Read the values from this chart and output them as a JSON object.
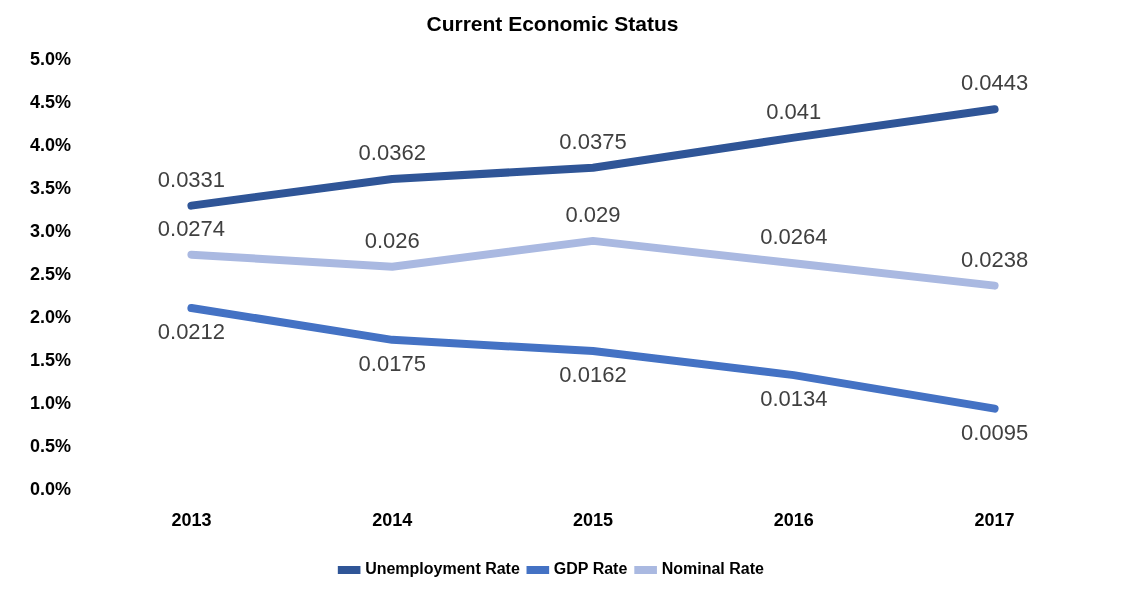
{
  "chart_data": {
    "type": "line",
    "title": "Current Economic Status",
    "categories": [
      "2013",
      "2014",
      "2015",
      "2016",
      "2017"
    ],
    "series": [
      {
        "name": "Unemployment Rate",
        "color": "#2f5597",
        "values": [
          0.0331,
          0.0362,
          0.0375,
          0.041,
          0.0443
        ]
      },
      {
        "name": "GDP Rate",
        "color": "#4472c4",
        "values": [
          0.0212,
          0.0175,
          0.0162,
          0.0134,
          0.0095
        ]
      },
      {
        "name": "Nominal Rate",
        "color": "#aab9e1",
        "values": [
          0.0274,
          0.026,
          0.029,
          0.0264,
          0.0238
        ]
      }
    ],
    "ylim": [
      0,
      0.05
    ],
    "yticks": [
      {
        "value": 0,
        "label": "0.0%"
      },
      {
        "value": 0.005,
        "label": "0.5%"
      },
      {
        "value": 0.01,
        "label": "1.0%"
      },
      {
        "value": 0.015,
        "label": "1.5%"
      },
      {
        "value": 0.02,
        "label": "2.0%"
      },
      {
        "value": 0.025,
        "label": "2.5%"
      },
      {
        "value": 0.03,
        "label": "3.0%"
      },
      {
        "value": 0.035,
        "label": "3.5%"
      },
      {
        "value": 0.04,
        "label": "4.0%"
      },
      {
        "value": 0.045,
        "label": "4.5%"
      },
      {
        "value": 0.05,
        "label": "5.0%"
      }
    ],
    "grid": false,
    "legend": "bottom",
    "marker": "none",
    "line_style": "solid",
    "data_labels": true
  }
}
